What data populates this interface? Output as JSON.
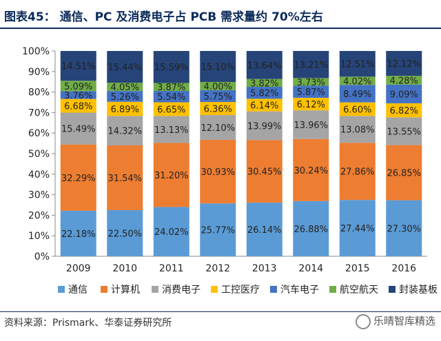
{
  "figure": {
    "title": "图表45：   通信、PC 及消费电子占 PCB 需求量约 70%左右",
    "source": "资料来源：Prismark、华泰证券研究所",
    "watermark": "乐晴智库精选"
  },
  "chart_data": {
    "type": "bar",
    "stacked": true,
    "percent": true,
    "categories": [
      "2009",
      "2010",
      "2011",
      "2012",
      "2013",
      "2014",
      "2015",
      "2016"
    ],
    "yticks": [
      "0%",
      "10%",
      "20%",
      "30%",
      "40%",
      "50%",
      "60%",
      "70%",
      "80%",
      "90%",
      "100%"
    ],
    "ylim": [
      0,
      100
    ],
    "legend_position": "bottom",
    "series": [
      {
        "name": "通信",
        "color": "#5b9bd5",
        "values": [
          22.18,
          22.5,
          24.02,
          25.77,
          26.14,
          26.88,
          27.44,
          27.3
        ],
        "labels": [
          "22.18%",
          "22.50%",
          "24.02%",
          "25.77%",
          "26.14%",
          "26.88%",
          "27.44%",
          "27.30%"
        ]
      },
      {
        "name": "计算机",
        "color": "#ed7d31",
        "values": [
          32.29,
          31.54,
          31.2,
          30.93,
          30.45,
          30.24,
          27.86,
          26.85
        ],
        "labels": [
          "32.29%",
          "31.54%",
          "31.20%",
          "30.93%",
          "30.45%",
          "30.24%",
          "27.86%",
          "26.85%"
        ]
      },
      {
        "name": "消费电子",
        "color": "#a5a5a5",
        "values": [
          15.49,
          14.32,
          13.13,
          12.1,
          13.99,
          13.96,
          13.08,
          13.55
        ],
        "labels": [
          "15.49%",
          "14.32%",
          "13.13%",
          "12.10%",
          "13.99%",
          "13.96%",
          "13.08%",
          "13.55%"
        ]
      },
      {
        "name": "工控医疗",
        "color": "#ffc000",
        "values": [
          6.68,
          6.89,
          6.65,
          6.36,
          6.14,
          6.12,
          6.6,
          6.82
        ],
        "labels": [
          "6.68%",
          "6.89%",
          "6.65%",
          "6.36%",
          "6.14%",
          "6.12%",
          "6.60%",
          "6.82%"
        ]
      },
      {
        "name": "汽车电子",
        "color": "#4472c4",
        "values": [
          3.76,
          5.26,
          5.54,
          5.75,
          5.82,
          5.87,
          8.49,
          9.09
        ],
        "labels": [
          "3.76%",
          "5.26%",
          "5.54%",
          "5.75%",
          "5.82%",
          "5.87%",
          "8.49%",
          "9.09%"
        ]
      },
      {
        "name": "航空航天",
        "color": "#70ad47",
        "values": [
          5.09,
          4.05,
          3.87,
          4.0,
          3.82,
          3.73,
          4.02,
          4.28
        ],
        "labels": [
          "5.09%",
          "4.05%",
          "3.87%",
          "4.00%",
          "3.82%",
          "3.73%",
          "4.02%",
          "4.28%"
        ]
      },
      {
        "name": "封装基板",
        "color": "#264478",
        "values": [
          14.51,
          15.44,
          15.59,
          15.1,
          13.64,
          13.21,
          12.51,
          12.12
        ],
        "labels": [
          "14.51%",
          "15.44%",
          "15.59%",
          "15.10%",
          "13.64%",
          "13.21%",
          "12.51%",
          "12.12%"
        ]
      }
    ]
  }
}
